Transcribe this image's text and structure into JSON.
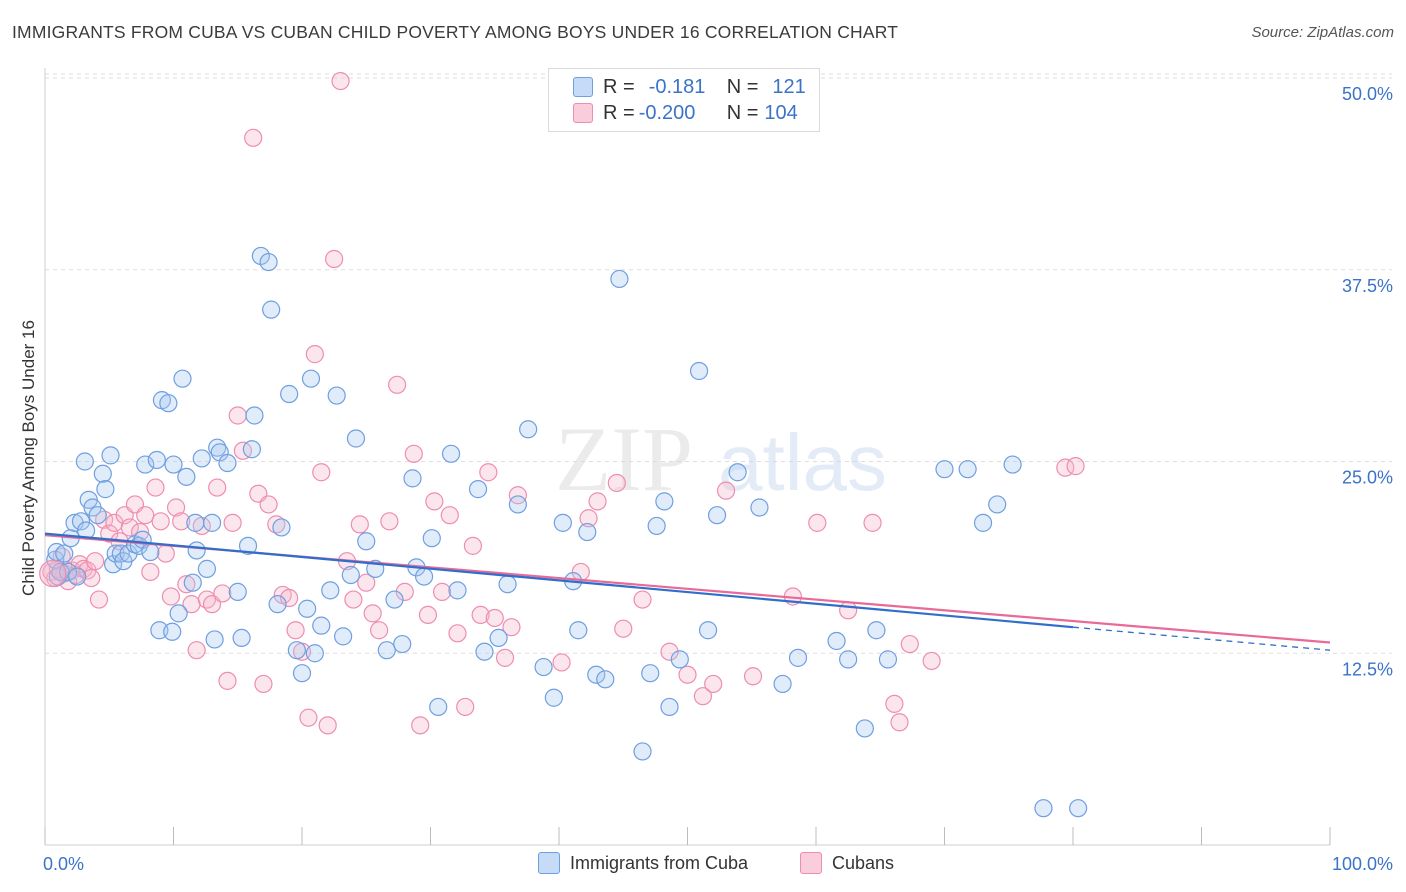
{
  "header": {
    "title": "IMMIGRANTS FROM CUBA VS CUBAN CHILD POVERTY AMONG BOYS UNDER 16 CORRELATION CHART",
    "source": "Source: ZipAtlas.com"
  },
  "legend": {
    "r_label": "R =",
    "n_label": "N =",
    "rows": [
      {
        "r": "-0.181",
        "n": "121"
      },
      {
        "r": "-0.200",
        "n": "104"
      }
    ]
  },
  "watermark": {
    "zip": "ZIP",
    "atlas": "atlas"
  },
  "colors": {
    "blue_fill": "#aac8f0",
    "blue_stroke": "#6f9fe0",
    "blue_line": "#2f6ecb",
    "pink_fill": "#f6b8cc",
    "pink_stroke": "#ee8db0",
    "pink_line": "#e86a98",
    "tick_label": "#3a73c9",
    "grid": "#dddddd"
  },
  "chart_data": {
    "type": "scatter",
    "title": "IMMIGRANTS FROM CUBA VS CUBAN CHILD POVERTY AMONG BOYS UNDER 16 CORRELATION CHART",
    "xlabel": "",
    "ylabel": "Child Poverty Among Boys Under 16",
    "xlim": [
      0,
      100
    ],
    "ylim": [
      0,
      50
    ],
    "x_tick_labels": [
      "0.0%",
      "100.0%"
    ],
    "y_ticks": [
      12.5,
      25.0,
      37.5,
      50.0
    ],
    "y_tick_labels": [
      "12.5%",
      "25.0%",
      "37.5%",
      "50.0%"
    ],
    "grid": true,
    "legend_position": "top-center",
    "series": [
      {
        "name": "Immigrants from Cuba",
        "r": -0.181,
        "n": 121,
        "trend": {
          "x": [
            0,
            80
          ],
          "y": [
            20.3,
            14.2
          ],
          "dashed_to": [
            100,
            12.7
          ]
        },
        "points": [
          [
            0.8,
            18.6
          ],
          [
            0.9,
            19.1
          ],
          [
            1.0,
            17.5
          ],
          [
            1.2,
            17.8
          ],
          [
            1.5,
            19.0
          ],
          [
            1.8,
            17.8
          ],
          [
            2.0,
            20.0
          ],
          [
            2.3,
            21.0
          ],
          [
            2.5,
            17.5
          ],
          [
            2.8,
            21.1
          ],
          [
            3.1,
            25.0
          ],
          [
            3.2,
            20.5
          ],
          [
            3.4,
            22.5
          ],
          [
            3.7,
            22.0
          ],
          [
            4.1,
            21.5
          ],
          [
            4.5,
            24.2
          ],
          [
            4.7,
            23.2
          ],
          [
            5.1,
            25.4
          ],
          [
            5.3,
            18.3
          ],
          [
            5.5,
            19.0
          ],
          [
            5.9,
            19.0
          ],
          [
            6.1,
            18.5
          ],
          [
            6.5,
            19.0
          ],
          [
            7.0,
            19.6
          ],
          [
            7.3,
            19.5
          ],
          [
            7.6,
            19.9
          ],
          [
            7.8,
            24.8
          ],
          [
            8.2,
            19.1
          ],
          [
            8.7,
            25.1
          ],
          [
            8.9,
            14.0
          ],
          [
            9.1,
            29.0
          ],
          [
            9.6,
            28.8
          ],
          [
            9.9,
            13.9
          ],
          [
            10.0,
            24.8
          ],
          [
            10.4,
            15.1
          ],
          [
            10.7,
            30.4
          ],
          [
            11.0,
            24.0
          ],
          [
            11.5,
            17.1
          ],
          [
            11.7,
            21.0
          ],
          [
            11.8,
            19.2
          ],
          [
            12.2,
            25.2
          ],
          [
            12.6,
            18.0
          ],
          [
            13.0,
            21.0
          ],
          [
            13.2,
            13.4
          ],
          [
            13.4,
            25.9
          ],
          [
            13.6,
            25.6
          ],
          [
            14.2,
            24.9
          ],
          [
            15.0,
            16.5
          ],
          [
            15.3,
            13.5
          ],
          [
            15.8,
            19.5
          ],
          [
            16.1,
            25.8
          ],
          [
            16.3,
            28.0
          ],
          [
            16.8,
            38.4
          ],
          [
            17.4,
            38.0
          ],
          [
            17.6,
            34.9
          ],
          [
            18.1,
            15.7
          ],
          [
            18.4,
            20.7
          ],
          [
            19.0,
            29.4
          ],
          [
            19.6,
            12.7
          ],
          [
            20.0,
            11.2
          ],
          [
            20.4,
            15.4
          ],
          [
            20.7,
            30.4
          ],
          [
            21.0,
            12.5
          ],
          [
            21.5,
            14.3
          ],
          [
            22.2,
            16.6
          ],
          [
            22.7,
            29.3
          ],
          [
            23.2,
            13.6
          ],
          [
            23.8,
            17.6
          ],
          [
            24.2,
            26.5
          ],
          [
            25.0,
            19.8
          ],
          [
            25.7,
            18.0
          ],
          [
            26.6,
            12.7
          ],
          [
            27.2,
            16.0
          ],
          [
            27.8,
            13.1
          ],
          [
            28.6,
            23.9
          ],
          [
            28.9,
            18.1
          ],
          [
            29.5,
            17.5
          ],
          [
            30.1,
            20.0
          ],
          [
            30.6,
            9.0
          ],
          [
            31.6,
            25.5
          ],
          [
            32.1,
            16.6
          ],
          [
            33.7,
            23.2
          ],
          [
            34.2,
            12.6
          ],
          [
            35.3,
            13.5
          ],
          [
            36.0,
            17.0
          ],
          [
            36.8,
            22.2
          ],
          [
            37.6,
            27.1
          ],
          [
            38.8,
            11.6
          ],
          [
            39.6,
            9.6
          ],
          [
            40.3,
            21.0
          ],
          [
            41.1,
            17.2
          ],
          [
            41.5,
            14.0
          ],
          [
            42.2,
            20.4
          ],
          [
            42.9,
            11.1
          ],
          [
            43.6,
            10.8
          ],
          [
            44.7,
            36.9
          ],
          [
            46.5,
            6.1
          ],
          [
            47.1,
            11.2
          ],
          [
            47.6,
            20.8
          ],
          [
            48.2,
            22.4
          ],
          [
            48.6,
            9.0
          ],
          [
            49.4,
            12.1
          ],
          [
            50.9,
            30.9
          ],
          [
            51.6,
            14.0
          ],
          [
            52.3,
            21.5
          ],
          [
            53.9,
            24.3
          ],
          [
            55.6,
            22.0
          ],
          [
            57.4,
            10.5
          ],
          [
            58.6,
            12.2
          ],
          [
            61.6,
            13.3
          ],
          [
            62.5,
            12.1
          ],
          [
            63.8,
            7.6
          ],
          [
            64.7,
            14.0
          ],
          [
            65.6,
            12.1
          ],
          [
            70.0,
            24.5
          ],
          [
            71.8,
            24.5
          ],
          [
            73.0,
            21.0
          ],
          [
            74.1,
            22.2
          ],
          [
            75.3,
            24.8
          ],
          [
            77.7,
            2.4
          ],
          [
            80.4,
            2.4
          ]
        ]
      },
      {
        "name": "Cubans",
        "r": -0.2,
        "n": 104,
        "trend": {
          "x": [
            0,
            100
          ],
          "y": [
            20.2,
            13.2
          ]
        },
        "points": [
          [
            0.5,
            17.8
          ],
          [
            0.8,
            17.4
          ],
          [
            1.0,
            18.0
          ],
          [
            1.3,
            18.8
          ],
          [
            1.5,
            17.7
          ],
          [
            1.8,
            17.2
          ],
          [
            2.1,
            17.9
          ],
          [
            2.4,
            17.6
          ],
          [
            2.7,
            18.3
          ],
          [
            3.0,
            18.0
          ],
          [
            3.3,
            17.9
          ],
          [
            3.6,
            17.4
          ],
          [
            3.9,
            18.5
          ],
          [
            4.2,
            16.0
          ],
          [
            4.6,
            21.2
          ],
          [
            5.0,
            20.3
          ],
          [
            5.4,
            21.0
          ],
          [
            5.8,
            19.8
          ],
          [
            6.2,
            21.5
          ],
          [
            6.6,
            20.7
          ],
          [
            7.0,
            22.2
          ],
          [
            7.4,
            20.4
          ],
          [
            7.8,
            21.5
          ],
          [
            8.2,
            17.8
          ],
          [
            8.6,
            23.3
          ],
          [
            9.0,
            21.1
          ],
          [
            9.4,
            19.0
          ],
          [
            9.8,
            16.2
          ],
          [
            10.2,
            22.0
          ],
          [
            10.6,
            21.1
          ],
          [
            11.0,
            17.0
          ],
          [
            11.4,
            15.7
          ],
          [
            11.8,
            12.7
          ],
          [
            12.2,
            20.8
          ],
          [
            12.6,
            16.0
          ],
          [
            13.0,
            15.7
          ],
          [
            13.4,
            23.3
          ],
          [
            13.8,
            16.4
          ],
          [
            14.2,
            10.7
          ],
          [
            14.6,
            21.0
          ],
          [
            15.0,
            28.0
          ],
          [
            15.4,
            25.7
          ],
          [
            16.2,
            46.1
          ],
          [
            16.6,
            22.9
          ],
          [
            17.0,
            10.5
          ],
          [
            17.4,
            22.2
          ],
          [
            18.0,
            20.9
          ],
          [
            18.5,
            16.3
          ],
          [
            19.0,
            16.1
          ],
          [
            19.5,
            14.0
          ],
          [
            20.0,
            12.6
          ],
          [
            20.5,
            8.3
          ],
          [
            21.0,
            32.0
          ],
          [
            21.5,
            24.3
          ],
          [
            22.0,
            7.8
          ],
          [
            22.5,
            38.2
          ],
          [
            23.0,
            49.8
          ],
          [
            23.5,
            18.5
          ],
          [
            24.0,
            16.0
          ],
          [
            24.5,
            20.9
          ],
          [
            25.0,
            17.1
          ],
          [
            25.5,
            15.1
          ],
          [
            26.0,
            14.0
          ],
          [
            26.8,
            21.1
          ],
          [
            27.4,
            30.0
          ],
          [
            28.0,
            16.5
          ],
          [
            28.7,
            25.5
          ],
          [
            29.2,
            7.8
          ],
          [
            29.8,
            15.0
          ],
          [
            30.3,
            22.4
          ],
          [
            30.9,
            16.5
          ],
          [
            31.5,
            21.5
          ],
          [
            32.1,
            13.8
          ],
          [
            32.7,
            9.0
          ],
          [
            33.3,
            19.5
          ],
          [
            33.9,
            15.0
          ],
          [
            34.5,
            24.3
          ],
          [
            35.0,
            14.8
          ],
          [
            35.8,
            12.2
          ],
          [
            36.3,
            14.2
          ],
          [
            36.8,
            22.8
          ],
          [
            40.2,
            11.9
          ],
          [
            41.7,
            17.8
          ],
          [
            42.3,
            21.3
          ],
          [
            43.0,
            22.4
          ],
          [
            44.5,
            23.6
          ],
          [
            45.0,
            14.1
          ],
          [
            46.5,
            16.0
          ],
          [
            48.6,
            12.6
          ],
          [
            50.0,
            11.1
          ],
          [
            51.2,
            9.7
          ],
          [
            52.0,
            10.5
          ],
          [
            53.0,
            23.1
          ],
          [
            55.1,
            11.0
          ],
          [
            58.2,
            16.2
          ],
          [
            60.1,
            21.0
          ],
          [
            62.5,
            15.3
          ],
          [
            64.4,
            21.0
          ],
          [
            66.1,
            9.2
          ],
          [
            66.5,
            8.0
          ],
          [
            67.3,
            13.1
          ],
          [
            69.0,
            12.0
          ],
          [
            79.4,
            24.6
          ],
          [
            80.2,
            24.7
          ]
        ]
      }
    ]
  }
}
